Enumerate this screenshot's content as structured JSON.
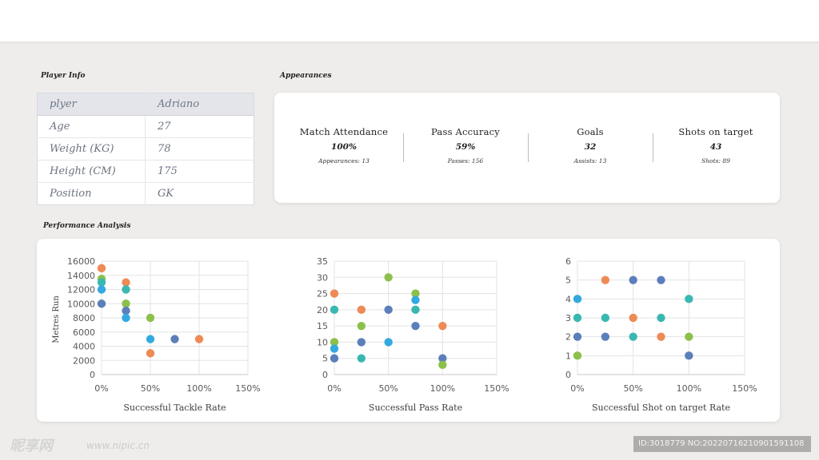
{
  "sections": {
    "player_info": "Player Info",
    "appearances": "Appearances",
    "performance": "Performance Analysis"
  },
  "player": {
    "rows": [
      {
        "key": "plyer",
        "value": "Adriano"
      },
      {
        "key": "Age",
        "value": "27"
      },
      {
        "key": "Weight (KG)",
        "value": "78"
      },
      {
        "key": "Height (CM)",
        "value": "175"
      },
      {
        "key": "Position",
        "value": "GK"
      }
    ]
  },
  "stats": [
    {
      "label": "Match Attendance",
      "value": "100%",
      "sub": "Appearances: 13"
    },
    {
      "label": "Pass Accuracy",
      "value": "59%",
      "sub": "Passes: 156"
    },
    {
      "label": "Goals",
      "value": "32",
      "sub": "Assists: 13"
    },
    {
      "label": "Shots on target",
      "value": "43",
      "sub": "Shots: 89"
    }
  ],
  "colors": {
    "blue": "#5b7fba",
    "orange": "#ee8a55",
    "green": "#8cc04b",
    "teal": "#39b8b0",
    "cyan": "#33a9e0"
  },
  "chart_data": [
    {
      "type": "scatter",
      "title": "",
      "xlabel": "Successful Tackle Rate",
      "ylabel": "Metres Run",
      "xlim": [
        0,
        1.5
      ],
      "ylim": [
        0,
        16000
      ],
      "x_ticks": [
        "0%",
        "50%",
        "100%",
        "150%"
      ],
      "y_ticks": [
        "0",
        "2000",
        "4000",
        "6000",
        "8000",
        "10000",
        "12000",
        "14000",
        "16000"
      ],
      "grid": true,
      "points": [
        {
          "x": 0,
          "y": 15000,
          "c": "orange"
        },
        {
          "x": 0,
          "y": 13500,
          "c": "green"
        },
        {
          "x": 0,
          "y": 13000,
          "c": "teal"
        },
        {
          "x": 0,
          "y": 12000,
          "c": "cyan"
        },
        {
          "x": 0,
          "y": 10000,
          "c": "blue"
        },
        {
          "x": 0.25,
          "y": 13000,
          "c": "orange"
        },
        {
          "x": 0.25,
          "y": 12000,
          "c": "teal"
        },
        {
          "x": 0.25,
          "y": 10000,
          "c": "green"
        },
        {
          "x": 0.25,
          "y": 9000,
          "c": "blue"
        },
        {
          "x": 0.25,
          "y": 8000,
          "c": "cyan"
        },
        {
          "x": 0.5,
          "y": 8000,
          "c": "green"
        },
        {
          "x": 0.5,
          "y": 5000,
          "c": "cyan"
        },
        {
          "x": 0.5,
          "y": 3000,
          "c": "orange"
        },
        {
          "x": 0.75,
          "y": 5000,
          "c": "blue"
        },
        {
          "x": 1.0,
          "y": 5000,
          "c": "orange"
        }
      ]
    },
    {
      "type": "scatter",
      "title": "",
      "xlabel": "Successful Pass Rate",
      "ylabel": "",
      "xlim": [
        0,
        1.5
      ],
      "ylim": [
        0,
        35
      ],
      "x_ticks": [
        "0%",
        "50%",
        "100%",
        "150%"
      ],
      "y_ticks": [
        "0",
        "5",
        "10",
        "15",
        "20",
        "25",
        "30",
        "35"
      ],
      "grid": true,
      "points": [
        {
          "x": 0,
          "y": 25,
          "c": "orange"
        },
        {
          "x": 0,
          "y": 20,
          "c": "teal"
        },
        {
          "x": 0,
          "y": 10,
          "c": "green"
        },
        {
          "x": 0,
          "y": 8,
          "c": "cyan"
        },
        {
          "x": 0,
          "y": 5,
          "c": "blue"
        },
        {
          "x": 0.25,
          "y": 20,
          "c": "orange"
        },
        {
          "x": 0.25,
          "y": 15,
          "c": "green"
        },
        {
          "x": 0.25,
          "y": 10,
          "c": "blue"
        },
        {
          "x": 0.25,
          "y": 5,
          "c": "teal"
        },
        {
          "x": 0.5,
          "y": 30,
          "c": "green"
        },
        {
          "x": 0.5,
          "y": 20,
          "c": "blue"
        },
        {
          "x": 0.5,
          "y": 10,
          "c": "cyan"
        },
        {
          "x": 0.75,
          "y": 25,
          "c": "green"
        },
        {
          "x": 0.75,
          "y": 23,
          "c": "cyan"
        },
        {
          "x": 0.75,
          "y": 20,
          "c": "teal"
        },
        {
          "x": 0.75,
          "y": 15,
          "c": "blue"
        },
        {
          "x": 1.0,
          "y": 15,
          "c": "orange"
        },
        {
          "x": 1.0,
          "y": 5,
          "c": "blue"
        },
        {
          "x": 1.0,
          "y": 3,
          "c": "green"
        }
      ]
    },
    {
      "type": "scatter",
      "title": "",
      "xlabel": "Successful Shot on target Rate",
      "ylabel": "",
      "xlim": [
        0,
        1.5
      ],
      "ylim": [
        0,
        6
      ],
      "x_ticks": [
        "0%",
        "50%",
        "100%",
        "150%"
      ],
      "y_ticks": [
        "0",
        "1",
        "2",
        "3",
        "4",
        "5",
        "6"
      ],
      "grid": true,
      "points": [
        {
          "x": 0,
          "y": 4,
          "c": "cyan"
        },
        {
          "x": 0,
          "y": 3,
          "c": "teal"
        },
        {
          "x": 0,
          "y": 2,
          "c": "blue"
        },
        {
          "x": 0,
          "y": 1,
          "c": "green"
        },
        {
          "x": 0.25,
          "y": 5,
          "c": "orange"
        },
        {
          "x": 0.25,
          "y": 3,
          "c": "teal"
        },
        {
          "x": 0.25,
          "y": 2,
          "c": "blue"
        },
        {
          "x": 0.5,
          "y": 5,
          "c": "blue"
        },
        {
          "x": 0.5,
          "y": 3,
          "c": "orange"
        },
        {
          "x": 0.5,
          "y": 2,
          "c": "teal"
        },
        {
          "x": 0.75,
          "y": 5,
          "c": "blue"
        },
        {
          "x": 0.75,
          "y": 3,
          "c": "teal"
        },
        {
          "x": 0.75,
          "y": 2,
          "c": "orange"
        },
        {
          "x": 1.0,
          "y": 4,
          "c": "teal"
        },
        {
          "x": 1.0,
          "y": 2,
          "c": "green"
        },
        {
          "x": 1.0,
          "y": 1,
          "c": "blue"
        }
      ]
    }
  ],
  "watermark": {
    "logo": "昵享网",
    "url": "www.nipic.cn",
    "id": "ID:3018779 NO:20220716210901591108"
  }
}
